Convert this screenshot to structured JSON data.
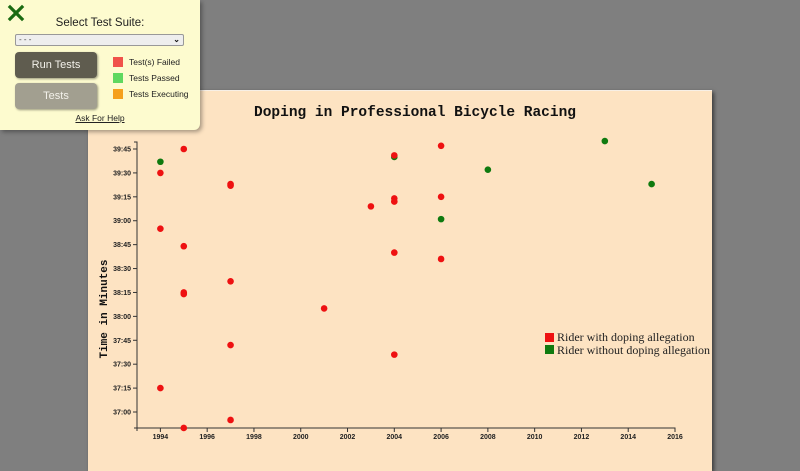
{
  "test_panel": {
    "close_icon": "close-icon",
    "suite_label": "Select Test Suite:",
    "suite_select_value": "- - -",
    "run_button": "Run Tests",
    "tests_button": "Tests",
    "status_legend": [
      {
        "label": "Test(s) Failed",
        "color": "#f0524a"
      },
      {
        "label": "Tests Passed",
        "color": "#5fd85f"
      },
      {
        "label": "Tests Executing",
        "color": "#f5a01d"
      }
    ],
    "help_link": "Ask For Help"
  },
  "chart": {
    "title": "Doping in Professional Bicycle Racing",
    "ylabel": "Time in Minutes",
    "legend": [
      {
        "label": "Rider with doping allegation",
        "color": "#ee1111"
      },
      {
        "label": "Rider without doping allegation",
        "color": "#0f7a0f"
      }
    ]
  },
  "chart_data": {
    "type": "scatter",
    "title": "Doping in Professional Bicycle Racing",
    "xlabel": "",
    "ylabel": "Time in Minutes",
    "x_ticks": [
      "1994",
      "1996",
      "1998",
      "2000",
      "2002",
      "2004",
      "2006",
      "2008",
      "2010",
      "2012",
      "2014",
      "2016"
    ],
    "y_ticks": [
      "39:45",
      "39:30",
      "39:15",
      "39:00",
      "38:45",
      "38:30",
      "38:15",
      "38:00",
      "37:45",
      "37:30",
      "37:15",
      "37:00"
    ],
    "xlim": [
      1993,
      2016
    ],
    "ylim_seconds": [
      2210,
      2395
    ],
    "legend_position": "right-middle",
    "grid": false,
    "series": [
      {
        "name": "Rider with doping allegation",
        "color": "#ee1111",
        "points": [
          {
            "year": 1994,
            "time": "39:30",
            "seconds": 2370
          },
          {
            "year": 1994,
            "time": "38:55",
            "seconds": 2335
          },
          {
            "year": 1994,
            "time": "37:15",
            "seconds": 2235
          },
          {
            "year": 1995,
            "time": "39:45",
            "seconds": 2385
          },
          {
            "year": 1995,
            "time": "38:44",
            "seconds": 2324
          },
          {
            "year": 1995,
            "time": "38:15",
            "seconds": 2295
          },
          {
            "year": 1995,
            "time": "38:14",
            "seconds": 2294
          },
          {
            "year": 1995,
            "time": "36:50",
            "seconds": 2210
          },
          {
            "year": 1997,
            "time": "39:23",
            "seconds": 2363
          },
          {
            "year": 1997,
            "time": "39:22",
            "seconds": 2362
          },
          {
            "year": 1997,
            "time": "38:22",
            "seconds": 2302
          },
          {
            "year": 1997,
            "time": "37:42",
            "seconds": 2262
          },
          {
            "year": 1997,
            "time": "36:55",
            "seconds": 2215
          },
          {
            "year": 2001,
            "time": "38:05",
            "seconds": 2285
          },
          {
            "year": 2003,
            "time": "39:09",
            "seconds": 2349
          },
          {
            "year": 2004,
            "time": "39:41",
            "seconds": 2381
          },
          {
            "year": 2004,
            "time": "39:14",
            "seconds": 2354
          },
          {
            "year": 2004,
            "time": "39:12",
            "seconds": 2352
          },
          {
            "year": 2004,
            "time": "38:40",
            "seconds": 2320
          },
          {
            "year": 2004,
            "time": "37:36",
            "seconds": 2256
          },
          {
            "year": 2006,
            "time": "39:47",
            "seconds": 2387
          },
          {
            "year": 2006,
            "time": "39:15",
            "seconds": 2355
          },
          {
            "year": 2006,
            "time": "38:36",
            "seconds": 2316
          }
        ]
      },
      {
        "name": "Rider without doping allegation",
        "color": "#0f7a0f",
        "points": [
          {
            "year": 1994,
            "time": "39:37",
            "seconds": 2377
          },
          {
            "year": 2004,
            "time": "39:40",
            "seconds": 2380
          },
          {
            "year": 2006,
            "time": "39:01",
            "seconds": 2341
          },
          {
            "year": 2008,
            "time": "39:32",
            "seconds": 2372
          },
          {
            "year": 2013,
            "time": "39:50",
            "seconds": 2390
          },
          {
            "year": 2015,
            "time": "39:23",
            "seconds": 2363
          }
        ]
      }
    ]
  }
}
